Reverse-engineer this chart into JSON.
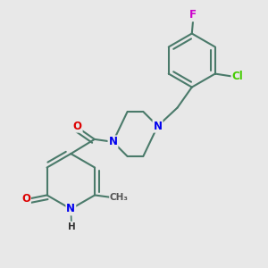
{
  "background_color": "#e8e8e8",
  "bond_color": "#4a7a6a",
  "bond_width": 1.5,
  "atom_colors": {
    "N": "#0000ee",
    "O": "#dd0000",
    "Cl": "#44cc00",
    "F": "#cc00cc",
    "C": "#333333",
    "H": "#333333"
  },
  "font_size": 8.5,
  "figsize": [
    3.0,
    3.0
  ],
  "dpi": 100
}
